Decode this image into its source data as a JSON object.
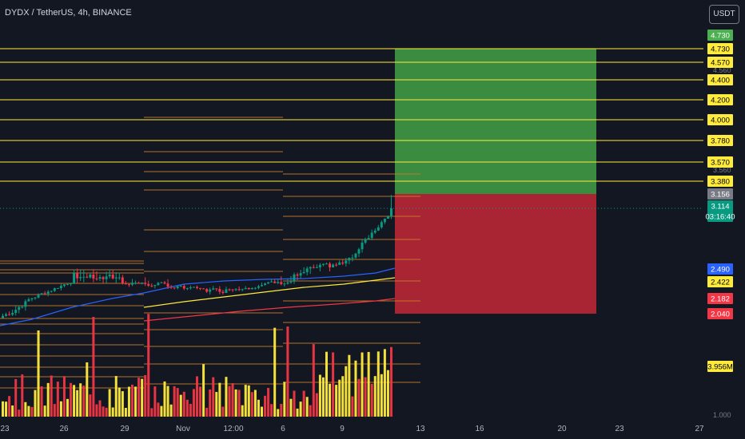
{
  "header": {
    "title": "DYDX / TetherUS, 4h, BINANCE",
    "currency": "USDT"
  },
  "chart_data": {
    "type": "candlestick",
    "symbol": "DYDX / TetherUS",
    "interval": "4h",
    "exchange": "BINANCE",
    "x_ticks": [
      "23",
      "26",
      "29",
      "Nov",
      "12:00",
      "6",
      "9",
      "13",
      "16",
      "20",
      "23",
      "27"
    ],
    "price_labels": [
      {
        "value": "4.730",
        "color": "#4caf50",
        "text_color": "#ffffff"
      },
      {
        "value": "4.730",
        "color": "#ffeb3b",
        "text_color": "#000000"
      },
      {
        "value": "4.570",
        "color": "#ffeb3b",
        "text_color": "#000000"
      },
      {
        "value": "4.400",
        "color": "#ffeb3b",
        "text_color": "#000000"
      },
      {
        "value": "4.200",
        "color": "#ffeb3b",
        "text_color": "#000000"
      },
      {
        "value": "4.000",
        "color": "#ffeb3b",
        "text_color": "#000000"
      },
      {
        "value": "3.780",
        "color": "#ffeb3b",
        "text_color": "#000000"
      },
      {
        "value": "3.570",
        "color": "#ffeb3b",
        "text_color": "#000000"
      },
      {
        "value": "3.380",
        "color": "#ffeb3b",
        "text_color": "#000000"
      },
      {
        "value": "3.156",
        "color": "#787b86",
        "text_color": "#ffffff"
      },
      {
        "value": "3.114",
        "color": "#089981",
        "text_color": "#ffffff"
      },
      {
        "value": "03:16:40",
        "color": "#089981",
        "text_color": "#ffffff"
      },
      {
        "value": "2.490",
        "color": "#2962ff",
        "text_color": "#ffffff"
      },
      {
        "value": "2.422",
        "color": "#ffeb3b",
        "text_color": "#000000"
      },
      {
        "value": "2.182",
        "color": "#f23645",
        "text_color": "#ffffff"
      },
      {
        "value": "2.040",
        "color": "#f23645",
        "text_color": "#ffffff"
      },
      {
        "value": "3.956M",
        "color": "#ffeb3b",
        "text_color": "#000000"
      }
    ],
    "faint_labels": [
      "4.560",
      "3.560",
      "1.000"
    ],
    "horizontal_levels": [
      4.73,
      4.57,
      4.4,
      4.2,
      4.0,
      3.78,
      3.57,
      3.38
    ],
    "current_price": 3.114,
    "countdown": "03:16:40",
    "position": {
      "entry": 3.156,
      "target": 4.73,
      "stop": 2.04
    },
    "volume_last": "3.956M",
    "colors": {
      "up": "#089981",
      "down": "#f23645",
      "level": "#ffeb3b",
      "profit_zone": "#43a047",
      "loss_zone": "#c62836",
      "ma_blue": "#2962ff",
      "ma_yellow": "#ffeb3b",
      "ma_red": "#f23645",
      "volume_yellow": "#ffeb3b",
      "volume_red": "#f23645",
      "orange_levels": "#c77b2b"
    }
  }
}
